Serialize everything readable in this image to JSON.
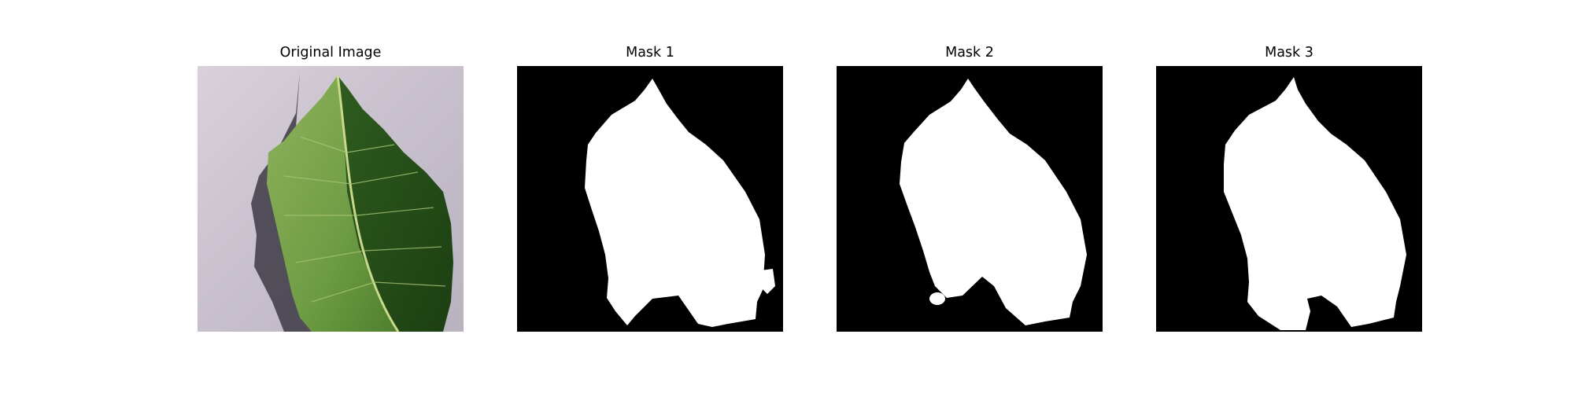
{
  "panels": [
    {
      "title": "Original Image",
      "content": "leaf-photo"
    },
    {
      "title": "Mask 1",
      "content": "binary-mask"
    },
    {
      "title": "Mask 2",
      "content": "binary-mask"
    },
    {
      "title": "Mask 3",
      "content": "binary-mask"
    }
  ],
  "colors": {
    "background": "#ffffff",
    "mask_foreground": "#ffffff",
    "mask_background": "#000000",
    "leaf_light_green": "#6f9d45",
    "leaf_dark_green": "#244e18",
    "paper_gray": "#cac3cf"
  }
}
